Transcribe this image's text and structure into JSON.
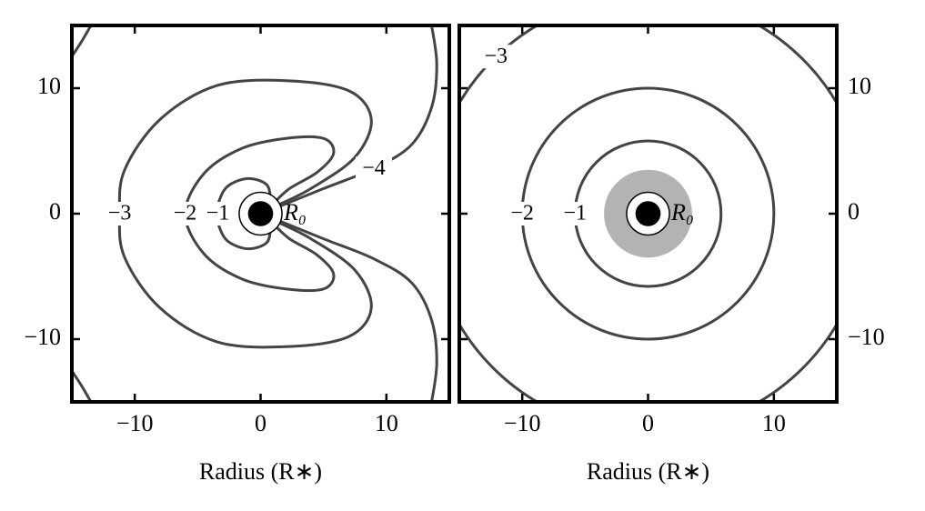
{
  "chart_data": [
    {
      "type": "contour",
      "xlabel": "Radius (R∗)",
      "xlim": [
        -15,
        15
      ],
      "ylim": [
        -15,
        15
      ],
      "xticks": [
        {
          "value": -10,
          "label": "−10"
        },
        0,
        10
      ],
      "yticks": [
        {
          "value": -10,
          "label": "−10"
        },
        0,
        10
      ],
      "ytick_side": "left",
      "line_color": "#444444",
      "star_radius": 1,
      "r0_radius": 1.7,
      "r0_label": "R₀",
      "contours": [
        {
          "label": "−1",
          "x": [
            0.8,
            0.5,
            -1,
            -2.6,
            -3.3,
            -3.4,
            -3.3,
            -2.6,
            -1,
            0.5,
            0.8
          ],
          "y": [
            1.0,
            2.3,
            2.8,
            2.2,
            1.0,
            0,
            -1.0,
            -2.2,
            -2.8,
            -2.3,
            -1.0
          ]
        },
        {
          "label": "−2",
          "x": [
            1,
            2.3,
            4.5,
            5.8,
            5,
            2,
            -1.5,
            -4.5,
            -6,
            -4.5,
            -1.5,
            2,
            5,
            5.8,
            4.5,
            2.3,
            1
          ],
          "y": [
            0.8,
            2,
            3.3,
            4.8,
            6,
            6,
            5.2,
            3.2,
            0,
            -3.2,
            -5.2,
            -6,
            -6,
            -4.8,
            -3.3,
            -2,
            -0.8
          ]
        },
        {
          "label": "−3",
          "x": [
            1.2,
            4,
            7.5,
            8.8,
            7,
            2,
            -3.5,
            -8,
            -10.8,
            -11.2,
            -10.8,
            -8,
            -3.5,
            2,
            7,
            8.8,
            7.5,
            4,
            1.2
          ],
          "y": [
            0.6,
            2,
            4.5,
            7.5,
            9.8,
            10.6,
            10.2,
            7.5,
            3.5,
            0,
            -3.5,
            -7.5,
            -10.2,
            -10.6,
            -9.8,
            -7.5,
            -4.5,
            -2,
            -0.6
          ]
        },
        {
          "label": "−4",
          "x": [
            1.3,
            5,
            9,
            12,
            13.6,
            14,
            13.5,
            null,
            13.5,
            14,
            13.6,
            12,
            9,
            5,
            1.3,
            null,
            -15.5,
            -14.3,
            -13.2,
            null,
            -15.5,
            -14.3,
            -13.2
          ],
          "y": [
            0.5,
            2,
            3.6,
            5.5,
            8.5,
            12,
            15.5,
            null,
            -15.5,
            -12,
            -8.5,
            -5.5,
            -3.6,
            -2,
            -0.5,
            null,
            11.8,
            13.6,
            15.5,
            null,
            -11.8,
            -13.6,
            -15.5
          ]
        }
      ]
    },
    {
      "type": "contour",
      "xlabel": "Radius (R∗)",
      "xlim": [
        -15,
        15
      ],
      "ylim": [
        -15,
        15
      ],
      "xticks": [
        {
          "value": -10,
          "label": "−10"
        },
        0,
        10
      ],
      "yticks": [
        {
          "value": -10,
          "label": "−10"
        },
        0,
        10
      ],
      "ytick_side": "right",
      "line_color": "#444444",
      "star_radius": 1,
      "r0_radius": 1.7,
      "r0_label": "R₀",
      "shade_radius": 3.5,
      "shade_color": "#b3b3b3",
      "contours": [
        {
          "label": "−1",
          "radius": 5.8
        },
        {
          "label": "−2",
          "radius": 10
        },
        {
          "label": "−3",
          "radius": 17.4
        }
      ]
    }
  ]
}
